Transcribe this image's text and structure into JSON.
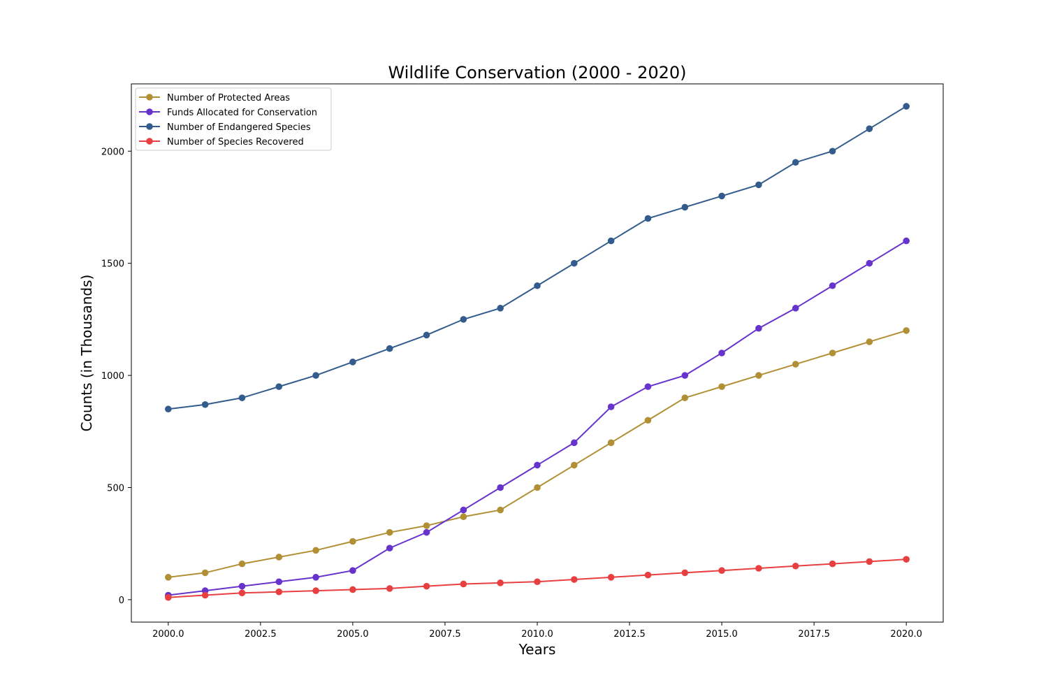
{
  "chart_data": {
    "type": "line",
    "title": "Wildlife Conservation (2000 - 2020)",
    "xlabel": "Years",
    "ylabel": "Counts (in Thousands)",
    "x": [
      2000,
      2001,
      2002,
      2003,
      2004,
      2005,
      2006,
      2007,
      2008,
      2009,
      2010,
      2011,
      2012,
      2013,
      2014,
      2015,
      2016,
      2017,
      2018,
      2019,
      2020
    ],
    "xlim": [
      1999,
      2021
    ],
    "ylim": [
      -100,
      2300
    ],
    "x_ticks": [
      2000.0,
      2002.5,
      2005.0,
      2007.5,
      2010.0,
      2012.5,
      2015.0,
      2017.5,
      2020.0
    ],
    "x_tick_labels": [
      "2000.0",
      "2002.5",
      "2005.0",
      "2007.5",
      "2010.0",
      "2012.5",
      "2015.0",
      "2017.5",
      "2020.0"
    ],
    "y_ticks": [
      0,
      500,
      1000,
      1500,
      2000
    ],
    "y_tick_labels": [
      "0",
      "500",
      "1000",
      "1500",
      "2000"
    ],
    "grid": false,
    "legend_position": "top-left",
    "series": [
      {
        "name": "Number of Protected Areas",
        "color": "#b08f35",
        "values": [
          100,
          120,
          160,
          190,
          220,
          260,
          300,
          330,
          370,
          400,
          500,
          600,
          700,
          800,
          900,
          950,
          1000,
          1050,
          1100,
          1150,
          1200
        ]
      },
      {
        "name": "Funds Allocated for Conservation",
        "color": "#6633cc",
        "values": [
          20,
          40,
          60,
          80,
          100,
          130,
          230,
          300,
          400,
          500,
          600,
          700,
          860,
          950,
          1000,
          1100,
          1210,
          1300,
          1400,
          1500,
          1600
        ]
      },
      {
        "name": "Number of Endangered Species",
        "color": "#335c8c",
        "values": [
          850,
          870,
          900,
          950,
          1000,
          1060,
          1120,
          1180,
          1250,
          1300,
          1400,
          1500,
          1600,
          1700,
          1750,
          1800,
          1850,
          1950,
          2000,
          2100,
          2200
        ]
      },
      {
        "name": "Number of Species Recovered",
        "color": "#e84040",
        "values": [
          10,
          20,
          30,
          35,
          40,
          45,
          50,
          60,
          70,
          75,
          80,
          90,
          100,
          110,
          120,
          130,
          140,
          150,
          160,
          170,
          180
        ]
      }
    ]
  }
}
